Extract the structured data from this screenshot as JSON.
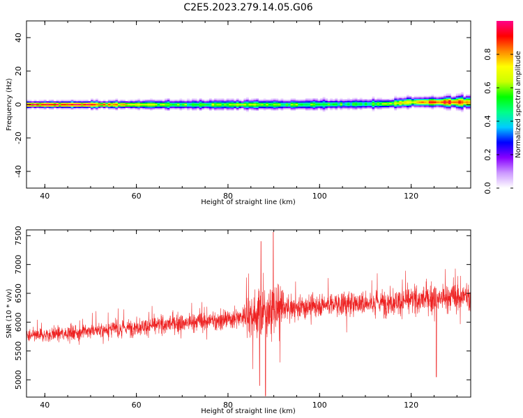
{
  "title": "C2E5.2023.279.14.05.G06",
  "chart_data": [
    {
      "type": "heatmap",
      "xlabel": "Height of straight line (km)",
      "ylabel": "Frequency (Hz)",
      "xlim": [
        36,
        133
      ],
      "ylim": [
        -50,
        50
      ],
      "xticks": [
        40,
        60,
        80,
        100,
        120
      ],
      "yticks": [
        40,
        20,
        0,
        -20,
        -40
      ],
      "colorbar": {
        "label": "Normalized spectral amplitude",
        "range": [
          0,
          1
        ],
        "ticks": [
          "0.0",
          "0.2",
          "0.4",
          "0.6",
          "0.8"
        ],
        "colormap": [
          "#ffffff",
          "#cc99ff",
          "#8800ff",
          "#0000ff",
          "#00ccff",
          "#00ff88",
          "#00ff00",
          "#ccff00",
          "#ffff00",
          "#ff8800",
          "#ff0000",
          "#ff0088"
        ]
      },
      "band": {
        "center_hz": [
          [
            36,
            0
          ],
          [
            55,
            0
          ],
          [
            75,
            0
          ],
          [
            95,
            0
          ],
          [
            115,
            0.5
          ],
          [
            120,
            1.5
          ],
          [
            133,
            1.5
          ]
        ],
        "peak_amplitude": [
          [
            36,
            0.95
          ],
          [
            50,
            0.92
          ],
          [
            58,
            0.75
          ],
          [
            65,
            0.6
          ],
          [
            75,
            0.55
          ],
          [
            85,
            0.65
          ],
          [
            95,
            0.55
          ],
          [
            110,
            0.5
          ],
          [
            120,
            0.75
          ],
          [
            127,
            0.9
          ],
          [
            133,
            0.85
          ]
        ],
        "halfwidth_hz": [
          [
            36,
            2
          ],
          [
            60,
            2.5
          ],
          [
            70,
            3
          ],
          [
            80,
            3
          ],
          [
            100,
            3
          ],
          [
            120,
            3
          ],
          [
            133,
            4
          ]
        ]
      }
    },
    {
      "type": "line",
      "xlabel": "Height of straight line (km)",
      "ylabel": "SNR (10 * v/v)",
      "xlim": [
        36,
        133
      ],
      "ylim": [
        4700,
        7600
      ],
      "xticks": [
        40,
        60,
        80,
        100,
        120
      ],
      "yticks": [
        7500,
        7000,
        6500,
        6000,
        5500,
        5000
      ],
      "color": "#ee2222",
      "trend": [
        [
          36,
          5750
        ],
        [
          50,
          5850
        ],
        [
          65,
          5950
        ],
        [
          80,
          6050
        ],
        [
          90,
          6200
        ],
        [
          100,
          6300
        ],
        [
          115,
          6350
        ],
        [
          133,
          6450
        ]
      ],
      "anomalies": [
        {
          "x": 88.2,
          "min": 4720
        },
        {
          "x": 89.9,
          "max": 7560
        },
        {
          "x": 86.9,
          "min": 4900
        },
        {
          "x": 87.2,
          "max": 7400
        },
        {
          "x": 125.5,
          "min": 5050
        }
      ]
    }
  ]
}
